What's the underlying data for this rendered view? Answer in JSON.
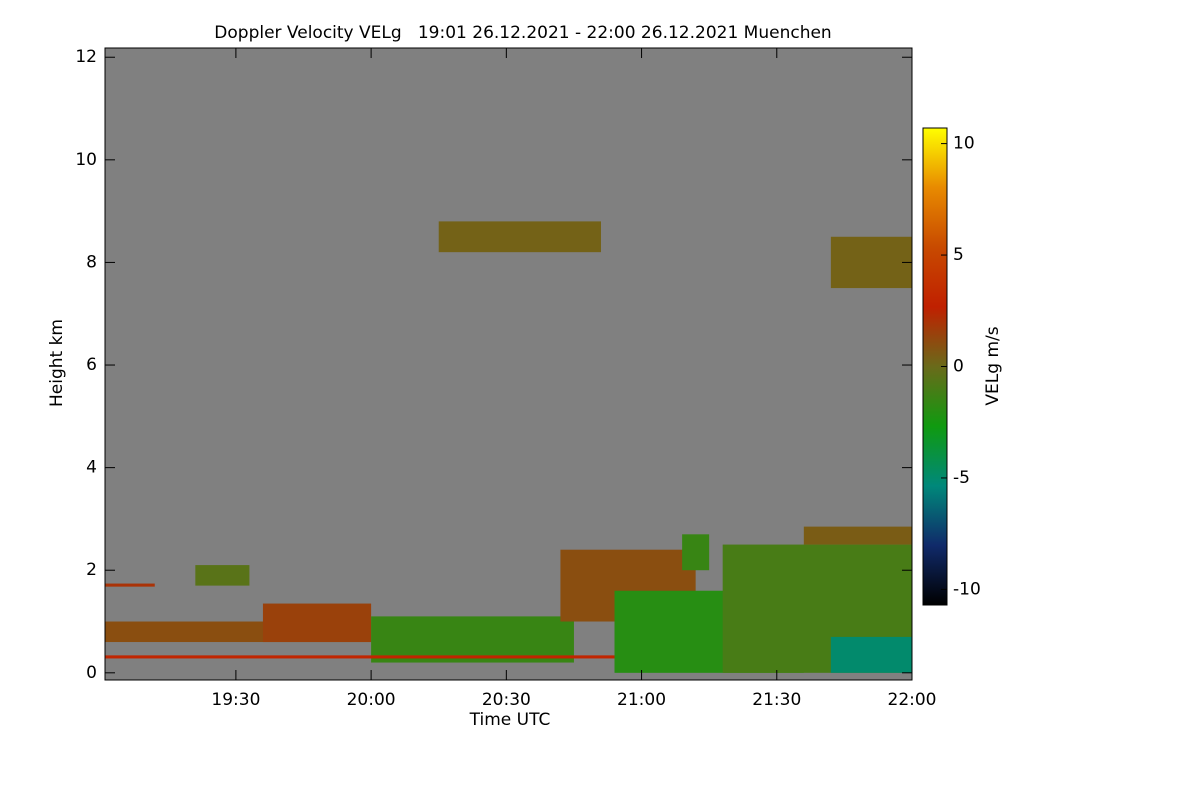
{
  "chart_data": {
    "type": "heatmap",
    "title": "Doppler Velocity VELg   19:01 26.12.2021 - 22:00 26.12.2021 Muenchen",
    "x_label": "Time UTC",
    "y_label": "Height km",
    "colorbar_label": "VELg m/s",
    "xlim": [
      19.016,
      22.0
    ],
    "xticks": [
      {
        "value": 19.5,
        "label": "19:30"
      },
      {
        "value": 20.0,
        "label": "20:00"
      },
      {
        "value": 20.5,
        "label": "20:30"
      },
      {
        "value": 21.0,
        "label": "21:00"
      },
      {
        "value": 21.5,
        "label": "21:30"
      },
      {
        "value": 22.0,
        "label": "22:00"
      }
    ],
    "ylim": [
      -0.14,
      12.18
    ],
    "yticks": [
      0,
      2,
      4,
      6,
      8,
      10,
      12
    ],
    "zlim": [
      -10.7,
      10.7
    ],
    "zticks": [
      -10,
      -5,
      0,
      5,
      10
    ],
    "background_color": "#808080",
    "colormap": [
      "#000000",
      "#102a6a",
      "#00887a",
      "#109a10",
      "#6a6a1a",
      "#c02000",
      "#c84a00",
      "#e88a00",
      "#ffff00"
    ],
    "patches": [
      {
        "x": [
          19.016,
          19.2
        ],
        "y": [
          1.68,
          1.74
        ],
        "value": 2
      },
      {
        "x": [
          19.016,
          20.0
        ],
        "y": [
          0.6,
          1.0
        ],
        "value": 1
      },
      {
        "x": [
          19.6,
          20.0
        ],
        "y": [
          0.6,
          1.35
        ],
        "value": 1.5
      },
      {
        "x": [
          19.35,
          19.55
        ],
        "y": [
          1.7,
          2.1
        ],
        "value": -0.5
      },
      {
        "x": [
          20.0,
          20.75
        ],
        "y": [
          0.2,
          1.1
        ],
        "value": -1.5
      },
      {
        "x": [
          19.016,
          21.0
        ],
        "y": [
          0.28,
          0.34
        ],
        "value": 3
      },
      {
        "x": [
          20.7,
          21.2
        ],
        "y": [
          1.0,
          2.4
        ],
        "value": 1
      },
      {
        "x": [
          20.9,
          21.6
        ],
        "y": [
          0.0,
          1.6
        ],
        "value": -2
      },
      {
        "x": [
          21.15,
          21.25
        ],
        "y": [
          2.0,
          2.7
        ],
        "value": -1.5
      },
      {
        "x": [
          21.3,
          22.0
        ],
        "y": [
          0.0,
          2.5
        ],
        "value": -1
      },
      {
        "x": [
          21.6,
          22.0
        ],
        "y": [
          2.5,
          2.85
        ],
        "value": 0.5
      },
      {
        "x": [
          21.7,
          22.0
        ],
        "y": [
          0.0,
          0.7
        ],
        "value": -5
      },
      {
        "x": [
          20.25,
          20.85
        ],
        "y": [
          8.2,
          8.8
        ],
        "value": 0.3
      },
      {
        "x": [
          21.7,
          22.0
        ],
        "y": [
          7.5,
          8.5
        ],
        "value": 0.3
      }
    ]
  }
}
